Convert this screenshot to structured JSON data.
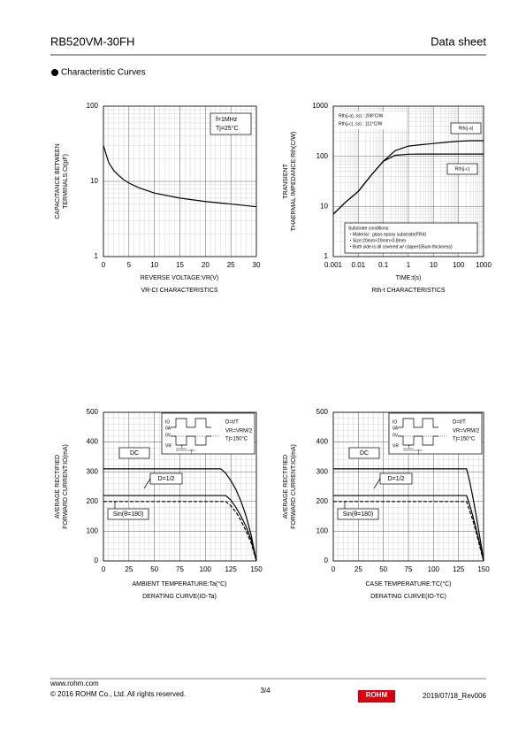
{
  "header": {
    "part": "RB520VM-30FH",
    "doc": "Data sheet"
  },
  "section": "Characteristic Curves",
  "chart_data": [
    {
      "type": "line",
      "log_y": true,
      "ylabel": [
        "CAPACITANCE BETWEEN",
        "TERMINALS:Ct(pF)"
      ],
      "xlabel": "REVERSE VOLTAGE:VR(V)",
      "caption": "VR-Ct CHARACTERISTICS",
      "annotations": [
        "f=1MHz",
        "Tj=25°C"
      ],
      "xlim": [
        0,
        30
      ],
      "xticks": [
        0,
        5,
        10,
        15,
        20,
        25,
        30
      ],
      "ylim": [
        1,
        100
      ],
      "yticks": [
        1,
        10,
        100
      ],
      "grid": true,
      "x": [
        0,
        1,
        2,
        3,
        4,
        5,
        7,
        10,
        15,
        20,
        25,
        30
      ],
      "series": [
        {
          "color": "#000000",
          "values": [
            30,
            18,
            14,
            12,
            10.5,
            9.5,
            8.2,
            7,
            6,
            5.4,
            5,
            4.6
          ]
        }
      ]
    },
    {
      "type": "line",
      "log_x": true,
      "log_y": true,
      "ylabel": [
        "TRANSIENT",
        "THAERMAL IMPEDANCE:Rth(C/W)"
      ],
      "xlabel": "TIME:t(s)",
      "caption": "Rth-t CHARACTERISTICS",
      "annotations": [
        "Rth(j-a), ss) : 208°C/W",
        "Rth(j-c), ss) : 111°C/W"
      ],
      "notes": [
        "Substrate conditions:",
        "・Material : glass epoxy substrate(FR4)",
        "・Size:20mm×20mm×0.8mm",
        "・Both side is all covered w/ copper(35um thickness)"
      ],
      "xlim": [
        0.001,
        1000
      ],
      "xticks": [
        0.001,
        0.01,
        0.1,
        1,
        10,
        100,
        1000
      ],
      "ylim": [
        1,
        1000
      ],
      "yticks": [
        1,
        10,
        100,
        1000
      ],
      "grid": true,
      "x": [
        0.001,
        0.003,
        0.01,
        0.03,
        0.1,
        0.3,
        1,
        3,
        10,
        30,
        100,
        300,
        1000
      ],
      "series": [
        {
          "name": "Rth(j-a)",
          "color": "#000000",
          "values": [
            7,
            12,
            20,
            40,
            80,
            130,
            160,
            170,
            180,
            190,
            200,
            205,
            205
          ]
        },
        {
          "name": "Rth(j-c)",
          "color": "#000000",
          "values": [
            7,
            12,
            20,
            40,
            80,
            105,
            110,
            111,
            111,
            111,
            111,
            111,
            111
          ]
        }
      ]
    },
    {
      "type": "line",
      "ylabel": [
        "AVERAGE RECTIFIED",
        "FORWARD CURRENT:IO(mA)"
      ],
      "xlabel": "AMBIENT TEMPERATURE:Ta(°C)",
      "caption": "DERATING CURVE(IO-Ta)",
      "annotations": [
        "D=t/T",
        "VR=VRM/2",
        "Tj=150°C",
        "IO",
        "0A",
        "0V",
        "VR",
        "t",
        "T"
      ],
      "xlim": [
        0,
        150
      ],
      "xticks": [
        0,
        25,
        50,
        75,
        100,
        125,
        150
      ],
      "ylim": [
        0,
        500
      ],
      "yticks": [
        0,
        100,
        200,
        300,
        400,
        500
      ],
      "grid": true,
      "series": [
        {
          "name": "DC",
          "color": "#000000",
          "style": "solid",
          "x": [
            0,
            115,
            120,
            125,
            130,
            135,
            140,
            145,
            150
          ],
          "values": [
            310,
            310,
            295,
            270,
            240,
            200,
            150,
            85,
            0
          ]
        },
        {
          "name": "D=1/2",
          "color": "#000000",
          "style": "solid",
          "x": [
            0,
            120,
            125,
            130,
            135,
            140,
            145,
            150
          ],
          "values": [
            220,
            220,
            205,
            180,
            150,
            115,
            70,
            0
          ]
        },
        {
          "name": "Sin(θ=180)",
          "color": "#000000",
          "style": "dashed",
          "x": [
            0,
            120,
            125,
            130,
            135,
            140,
            145,
            150
          ],
          "values": [
            200,
            200,
            185,
            165,
            135,
            100,
            60,
            0
          ]
        }
      ]
    },
    {
      "type": "line",
      "ylabel": [
        "AVERAGE RECTIFIED",
        "FORWARD CURRENT:IO(mA)"
      ],
      "xlabel": "CASE TEMPERATURE:TC(°C)",
      "caption": "DERATING CURVE(IO-TC)",
      "annotations": [
        "D=t/T",
        "VR=VRM/2",
        "Tj=150°C",
        "IO",
        "0A",
        "0V",
        "VR",
        "t",
        "T"
      ],
      "xlim": [
        0,
        150
      ],
      "xticks": [
        0,
        25,
        50,
        75,
        100,
        125,
        150
      ],
      "ylim": [
        0,
        500
      ],
      "yticks": [
        0,
        100,
        200,
        300,
        400,
        500
      ],
      "grid": true,
      "series": [
        {
          "name": "DC",
          "color": "#000000",
          "style": "solid",
          "x": [
            0,
            133,
            136,
            139,
            142,
            145,
            148,
            150
          ],
          "values": [
            310,
            310,
            270,
            220,
            165,
            105,
            45,
            0
          ]
        },
        {
          "name": "D=1/2",
          "color": "#000000",
          "style": "solid",
          "x": [
            0,
            133,
            136,
            139,
            142,
            145,
            148,
            150
          ],
          "values": [
            220,
            220,
            190,
            155,
            115,
            75,
            30,
            0
          ]
        },
        {
          "name": "Sin(θ=180)",
          "color": "#000000",
          "style": "dashed",
          "x": [
            0,
            133,
            136,
            139,
            142,
            145,
            148,
            150
          ],
          "values": [
            200,
            200,
            170,
            140,
            105,
            65,
            25,
            0
          ]
        }
      ]
    }
  ],
  "footer": {
    "url": "www.rohm.com",
    "copyright": "© 2016 ROHM Co., Ltd. All rights reserved.",
    "page": "3/4",
    "logo": "ROHM",
    "date": "2019/07/18_Rev006"
  }
}
